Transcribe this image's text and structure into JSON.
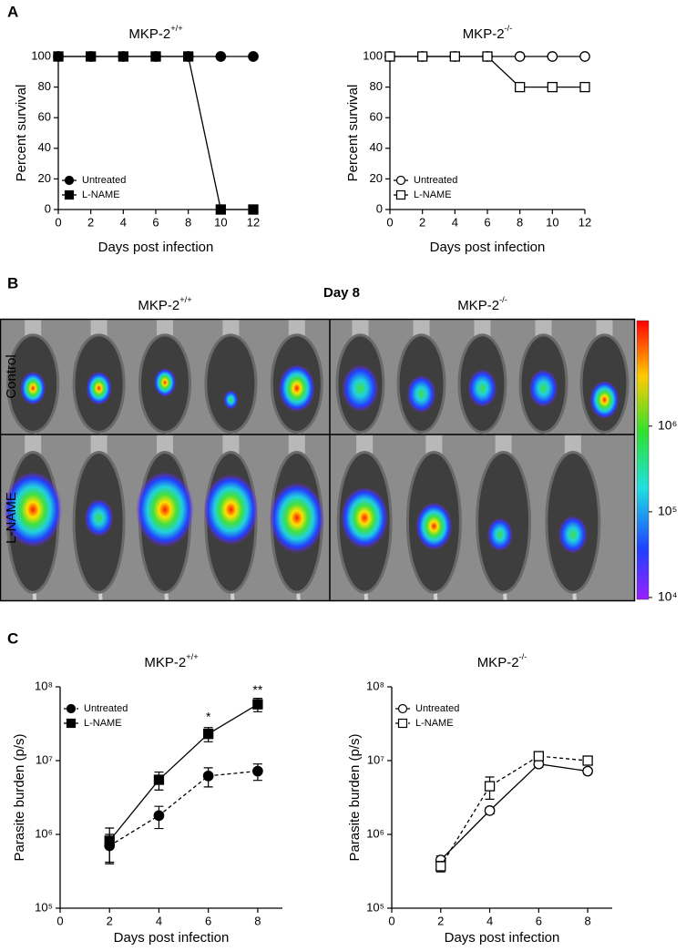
{
  "panel_labels": [
    "A",
    "B",
    "C"
  ],
  "chart_data": [
    {
      "type": "line",
      "title": "MKP-2",
      "title_superscript": "+/+",
      "xlabel": "Days post infection",
      "ylabel": "Percent survival",
      "x": [
        0,
        2,
        4,
        6,
        8,
        10,
        12
      ],
      "xlim": [
        0,
        12
      ],
      "xticks": [
        0,
        2,
        4,
        6,
        8,
        10,
        12
      ],
      "ylim": [
        0,
        100
      ],
      "yticks": [
        0,
        20,
        40,
        60,
        80,
        100
      ],
      "legend": "lower left",
      "series": [
        {
          "name": "Untreated",
          "color": "#000000",
          "marker": "circle",
          "filled": true,
          "dash": false,
          "values": [
            100,
            100,
            100,
            100,
            100,
            100,
            100
          ]
        },
        {
          "name": "L-NAME",
          "color": "#000000",
          "marker": "square",
          "filled": true,
          "dash": false,
          "values": [
            100,
            100,
            100,
            100,
            100,
            0,
            0
          ]
        }
      ]
    },
    {
      "type": "line",
      "title": "MKP-2",
      "title_superscript": "-/-",
      "xlabel": "Days post infection",
      "ylabel": "Percent survival",
      "x": [
        0,
        2,
        4,
        6,
        8,
        10,
        12
      ],
      "xlim": [
        0,
        12
      ],
      "xticks": [
        0,
        2,
        4,
        6,
        8,
        10,
        12
      ],
      "ylim": [
        0,
        100
      ],
      "yticks": [
        0,
        20,
        40,
        60,
        80,
        100
      ],
      "legend": "lower left",
      "series": [
        {
          "name": "Untreated",
          "color": "#000000",
          "marker": "circle",
          "filled": false,
          "dash": false,
          "values": [
            100,
            100,
            100,
            100,
            100,
            100,
            100
          ]
        },
        {
          "name": "L-NAME",
          "color": "#000000",
          "marker": "square",
          "filled": false,
          "dash": false,
          "values": [
            100,
            100,
            100,
            100,
            80,
            80,
            80
          ]
        }
      ]
    },
    {
      "type": "line",
      "title": "MKP-2",
      "title_superscript": "+/+",
      "xlabel": "Days post infection",
      "ylabel": "Parasite burden (p/s)",
      "x": [
        2,
        4,
        6,
        8
      ],
      "xlim": [
        0,
        9
      ],
      "xticks": [
        0,
        2,
        4,
        6,
        8
      ],
      "yscale": "log",
      "ylim": [
        100000,
        100000000
      ],
      "yticks": [
        {
          "value": 100000,
          "label": "10⁵"
        },
        {
          "value": 1000000,
          "label": "10⁶"
        },
        {
          "value": 10000000,
          "label": "10⁷"
        },
        {
          "value": 100000000,
          "label": "10⁸"
        }
      ],
      "legend": "upper left",
      "series": [
        {
          "name": "Untreated",
          "color": "#000000",
          "marker": "circle",
          "filled": true,
          "dash": true,
          "values": [
            700000,
            1800000,
            6200000,
            7200000
          ],
          "errors": [
            300000,
            600000,
            1800000,
            1800000
          ]
        },
        {
          "name": "L-NAME",
          "color": "#000000",
          "marker": "square",
          "filled": true,
          "dash": false,
          "values": [
            820000,
            5500000,
            23000000,
            58000000
          ],
          "errors": [
            400000,
            1500000,
            5000000,
            12000000
          ]
        }
      ],
      "annotations": [
        {
          "text": "*",
          "x": 6,
          "y": 38000000
        },
        {
          "text": "**",
          "x": 8,
          "y": 88000000
        }
      ]
    },
    {
      "type": "line",
      "title": "MKP-2",
      "title_superscript": "-/-",
      "xlabel": "Days post infection",
      "ylabel": "Parasite burden (p/s)",
      "x": [
        2,
        4,
        6,
        8
      ],
      "xlim": [
        0,
        9
      ],
      "xticks": [
        0,
        2,
        4,
        6,
        8
      ],
      "yscale": "log",
      "ylim": [
        100000,
        100000000
      ],
      "yticks": [
        {
          "value": 100000,
          "label": "10⁵"
        },
        {
          "value": 1000000,
          "label": "10⁶"
        },
        {
          "value": 10000000,
          "label": "10⁷"
        },
        {
          "value": 100000000,
          "label": "10⁸"
        }
      ],
      "legend": "upper left",
      "series": [
        {
          "name": "Untreated",
          "color": "#000000",
          "marker": "circle",
          "filled": false,
          "dash": false,
          "values": [
            450000,
            2100000,
            9000000,
            7200000
          ],
          "errors": [
            60000,
            200000,
            800000,
            600000
          ]
        },
        {
          "name": "L-NAME",
          "color": "#000000",
          "marker": "square",
          "filled": false,
          "dash": true,
          "values": [
            370000,
            4500000,
            11500000,
            10000000
          ],
          "errors": [
            60000,
            1500000,
            1200000,
            900000
          ]
        }
      ]
    }
  ],
  "panel_b": {
    "title": "Day 8",
    "columns": [
      {
        "base": "MKP-2",
        "sup": "+/+"
      },
      {
        "base": "MKP-2",
        "sup": "-/-"
      }
    ],
    "rows": [
      "Control",
      "L-NAME"
    ],
    "colorbar": {
      "lim": [
        9500,
        17000000
      ],
      "ticks": [
        {
          "value": 10000,
          "label": "10⁴"
        },
        {
          "value": 100000,
          "label": "10⁵"
        },
        {
          "value": 1000000,
          "label": "10⁶"
        }
      ]
    }
  }
}
